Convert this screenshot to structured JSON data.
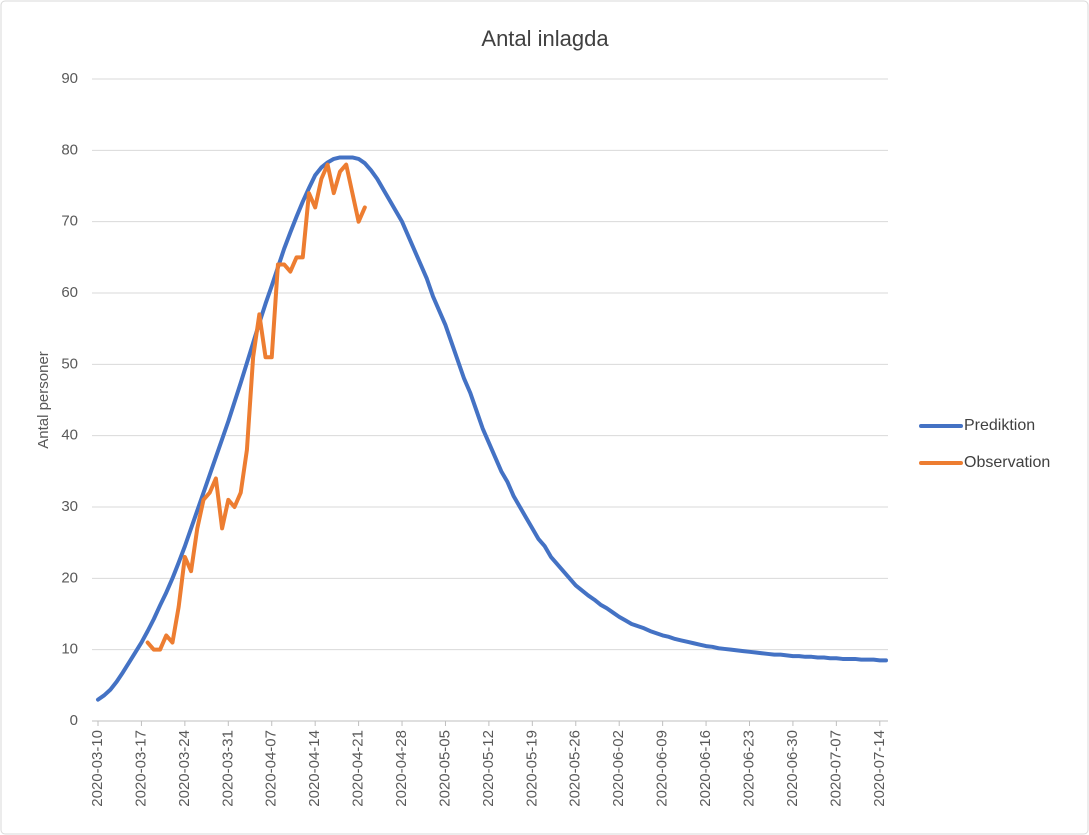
{
  "chart_data": {
    "type": "line",
    "title": "Antal inlagda",
    "y_label": "Antal personer",
    "x": [
      "2020-03-10",
      "2020-03-11",
      "2020-03-12",
      "2020-03-13",
      "2020-03-14",
      "2020-03-15",
      "2020-03-16",
      "2020-03-17",
      "2020-03-18",
      "2020-03-19",
      "2020-03-20",
      "2020-03-21",
      "2020-03-22",
      "2020-03-23",
      "2020-03-24",
      "2020-03-25",
      "2020-03-26",
      "2020-03-27",
      "2020-03-28",
      "2020-03-29",
      "2020-03-30",
      "2020-03-31",
      "2020-04-01",
      "2020-04-02",
      "2020-04-03",
      "2020-04-04",
      "2020-04-05",
      "2020-04-06",
      "2020-04-07",
      "2020-04-08",
      "2020-04-09",
      "2020-04-10",
      "2020-04-11",
      "2020-04-12",
      "2020-04-13",
      "2020-04-14",
      "2020-04-15",
      "2020-04-16",
      "2020-04-17",
      "2020-04-18",
      "2020-04-19",
      "2020-04-20",
      "2020-04-21",
      "2020-04-22",
      "2020-04-23",
      "2020-04-24",
      "2020-04-25",
      "2020-04-26",
      "2020-04-27",
      "2020-04-28",
      "2020-04-29",
      "2020-04-30",
      "2020-05-01",
      "2020-05-02",
      "2020-05-03",
      "2020-05-04",
      "2020-05-05",
      "2020-05-06",
      "2020-05-07",
      "2020-05-08",
      "2020-05-09",
      "2020-05-10",
      "2020-05-11",
      "2020-05-12",
      "2020-05-13",
      "2020-05-14",
      "2020-05-15",
      "2020-05-16",
      "2020-05-17",
      "2020-05-18",
      "2020-05-19",
      "2020-05-20",
      "2020-05-21",
      "2020-05-22",
      "2020-05-23",
      "2020-05-24",
      "2020-05-25",
      "2020-05-26",
      "2020-05-27",
      "2020-05-28",
      "2020-05-29",
      "2020-05-30",
      "2020-05-31",
      "2020-06-01",
      "2020-06-02",
      "2020-06-03",
      "2020-06-04",
      "2020-06-05",
      "2020-06-06",
      "2020-06-07",
      "2020-06-08",
      "2020-06-09",
      "2020-06-10",
      "2020-06-11",
      "2020-06-12",
      "2020-06-13",
      "2020-06-14",
      "2020-06-15",
      "2020-06-16",
      "2020-06-17",
      "2020-06-18",
      "2020-06-19",
      "2020-06-20",
      "2020-06-21",
      "2020-06-22",
      "2020-06-23",
      "2020-06-24",
      "2020-06-25",
      "2020-06-26",
      "2020-06-27",
      "2020-06-28",
      "2020-06-29",
      "2020-06-30",
      "2020-07-01",
      "2020-07-02",
      "2020-07-03",
      "2020-07-04",
      "2020-07-05",
      "2020-07-06",
      "2020-07-07",
      "2020-07-08",
      "2020-07-09",
      "2020-07-10",
      "2020-07-11",
      "2020-07-12",
      "2020-07-13",
      "2020-07-14",
      "2020-07-15"
    ],
    "xlim": [
      "2020-03-10",
      "2020-07-15"
    ],
    "xticks": [
      "2020-03-10",
      "2020-03-17",
      "2020-03-24",
      "2020-03-31",
      "2020-04-07",
      "2020-04-14",
      "2020-04-21",
      "2020-04-28",
      "2020-05-05",
      "2020-05-12",
      "2020-05-19",
      "2020-05-26",
      "2020-06-02",
      "2020-06-09",
      "2020-06-16",
      "2020-06-23",
      "2020-06-30",
      "2020-07-07",
      "2020-07-14"
    ],
    "ylim": [
      0,
      90
    ],
    "yticks": [
      0,
      10,
      20,
      30,
      40,
      50,
      60,
      70,
      80,
      90
    ],
    "grid": true,
    "legend": "right",
    "series": [
      {
        "name": "Prediktion",
        "color": "#4472c4",
        "values": [
          3,
          3.6,
          4.4,
          5.5,
          6.8,
          8.2,
          9.6,
          11,
          12.6,
          14.3,
          16.2,
          18,
          20,
          22.2,
          24.5,
          27,
          29.5,
          32,
          34.5,
          37,
          39.5,
          42,
          44.7,
          47.4,
          50.2,
          53,
          55.8,
          58.5,
          61,
          63.6,
          66.2,
          68.5,
          70.7,
          72.8,
          74.7,
          76.5,
          77.6,
          78.3,
          78.8,
          79,
          79,
          79,
          78.8,
          78.2,
          77.2,
          76,
          74.5,
          73,
          71.5,
          70,
          68,
          66,
          64,
          62,
          59.5,
          57.5,
          55.5,
          53,
          50.5,
          48,
          46,
          43.5,
          41,
          39,
          37,
          35,
          33.5,
          31.5,
          30,
          28.5,
          27,
          25.5,
          24.5,
          23,
          22,
          21,
          20,
          19,
          18.3,
          17.6,
          17,
          16.3,
          15.8,
          15.2,
          14.6,
          14.1,
          13.6,
          13.3,
          13,
          12.6,
          12.3,
          12,
          11.8,
          11.5,
          11.3,
          11.1,
          10.9,
          10.7,
          10.5,
          10.4,
          10.2,
          10.1,
          10,
          9.9,
          9.8,
          9.7,
          9.6,
          9.5,
          9.4,
          9.3,
          9.3,
          9.2,
          9.1,
          9.1,
          9,
          9,
          8.9,
          8.9,
          8.8,
          8.8,
          8.7,
          8.7,
          8.7,
          8.6,
          8.6,
          8.6,
          8.5,
          8.5
        ]
      },
      {
        "name": "Observation",
        "color": "#ed7d31",
        "values": [
          null,
          null,
          null,
          null,
          null,
          null,
          null,
          null,
          11,
          10,
          10,
          12,
          11,
          16,
          23,
          21,
          27,
          31,
          32,
          34,
          27,
          31,
          30,
          32,
          38,
          51,
          57,
          51,
          51,
          64,
          64,
          63,
          65,
          65,
          74,
          72,
          76,
          78,
          74,
          77,
          78,
          74,
          70,
          72,
          null,
          null,
          null,
          null,
          null,
          null,
          null,
          null,
          null,
          null,
          null,
          null,
          null,
          null,
          null,
          null,
          null,
          null,
          null,
          null,
          null,
          null,
          null,
          null,
          null,
          null,
          null,
          null,
          null,
          null,
          null,
          null,
          null,
          null,
          null,
          null,
          null,
          null,
          null,
          null,
          null,
          null,
          null,
          null,
          null,
          null,
          null,
          null,
          null,
          null,
          null,
          null,
          null,
          null,
          null,
          null,
          null,
          null,
          null,
          null,
          null,
          null,
          null,
          null,
          null,
          null,
          null,
          null,
          null,
          null,
          null,
          null,
          null,
          null,
          null,
          null,
          null,
          null,
          null,
          null,
          null,
          null,
          null,
          null
        ]
      }
    ]
  }
}
